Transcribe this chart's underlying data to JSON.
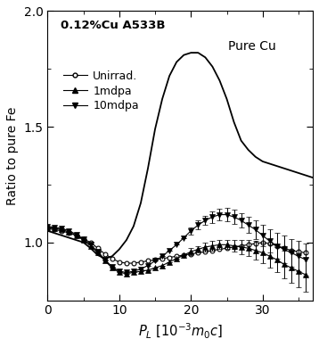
{
  "title_text": "0.12%Cu A533B",
  "pure_cu_label": "Pure Cu",
  "xlabel": "$P_L$ [10$^{-3}$$m_0$$c$]",
  "ylabel": "Ratio to pure Fe",
  "xlim": [
    0,
    37
  ],
  "ylim": [
    0.75,
    2.0
  ],
  "xticks": [
    0,
    10,
    20,
    30
  ],
  "yticks": [
    1.0,
    1.5,
    2.0
  ],
  "pure_cu_x": [
    0.0,
    1.0,
    2.0,
    3.0,
    4.0,
    5.0,
    6.0,
    7.0,
    8.0,
    9.0,
    10.0,
    11.0,
    12.0,
    13.0,
    14.0,
    15.0,
    16.0,
    17.0,
    18.0,
    19.0,
    20.0,
    21.0,
    22.0,
    23.0,
    24.0,
    25.0,
    26.0,
    27.0,
    28.0,
    29.0,
    30.0,
    31.0,
    32.0,
    33.0,
    34.0,
    35.0,
    36.0,
    37.0
  ],
  "pure_cu_y": [
    1.05,
    1.04,
    1.03,
    1.02,
    1.01,
    1.0,
    0.975,
    0.945,
    0.93,
    0.94,
    0.97,
    1.01,
    1.07,
    1.17,
    1.32,
    1.49,
    1.62,
    1.72,
    1.78,
    1.81,
    1.82,
    1.82,
    1.8,
    1.76,
    1.7,
    1.62,
    1.52,
    1.44,
    1.4,
    1.37,
    1.35,
    1.34,
    1.33,
    1.32,
    1.31,
    1.3,
    1.29,
    1.28
  ],
  "unirrad_x": [
    0.0,
    1.0,
    2.0,
    3.0,
    4.0,
    5.0,
    6.0,
    7.0,
    8.0,
    9.0,
    10.0,
    11.0,
    12.0,
    13.0,
    14.0,
    15.0,
    16.0,
    17.0,
    18.0,
    19.0,
    20.0,
    21.0,
    22.0,
    23.0,
    24.0,
    25.0,
    26.0,
    27.0,
    28.0,
    29.0,
    30.0,
    31.0,
    32.0,
    33.0,
    34.0,
    35.0,
    36.0
  ],
  "unirrad_y": [
    1.06,
    1.055,
    1.05,
    1.04,
    1.03,
    1.015,
    1.0,
    0.975,
    0.95,
    0.93,
    0.915,
    0.91,
    0.91,
    0.915,
    0.92,
    0.925,
    0.93,
    0.935,
    0.94,
    0.945,
    0.95,
    0.955,
    0.96,
    0.965,
    0.97,
    0.975,
    0.98,
    0.985,
    0.99,
    0.995,
    1.0,
    0.995,
    0.985,
    0.975,
    0.965,
    0.96,
    0.955
  ],
  "mdpa1_x": [
    0.0,
    1.0,
    2.0,
    3.0,
    4.0,
    5.0,
    6.0,
    7.0,
    8.0,
    9.0,
    10.0,
    11.0,
    12.0,
    13.0,
    14.0,
    15.0,
    16.0,
    17.0,
    18.0,
    19.0,
    20.0,
    21.0,
    22.0,
    23.0,
    24.0,
    25.0,
    26.0,
    27.0,
    28.0,
    29.0,
    30.0,
    31.0,
    32.0,
    33.0,
    34.0,
    35.0,
    36.0
  ],
  "mdpa1_y": [
    1.065,
    1.06,
    1.055,
    1.045,
    1.03,
    1.01,
    0.985,
    0.955,
    0.92,
    0.89,
    0.87,
    0.865,
    0.87,
    0.875,
    0.88,
    0.89,
    0.9,
    0.915,
    0.93,
    0.945,
    0.96,
    0.97,
    0.98,
    0.985,
    0.99,
    0.99,
    0.985,
    0.98,
    0.975,
    0.965,
    0.955,
    0.94,
    0.925,
    0.905,
    0.89,
    0.875,
    0.86
  ],
  "mdpa1_yerr": [
    0.0,
    0.0,
    0.0,
    0.0,
    0.0,
    0.0,
    0.0,
    0.0,
    0.0,
    0.0,
    0.0,
    0.0,
    0.0,
    0.0,
    0.0,
    0.0,
    0.0,
    0.0,
    0.0,
    0.0,
    0.015,
    0.015,
    0.02,
    0.02,
    0.02,
    0.02,
    0.025,
    0.03,
    0.035,
    0.04,
    0.045,
    0.05,
    0.055,
    0.06,
    0.065,
    0.07,
    0.075
  ],
  "mdpa10_x": [
    0.0,
    1.0,
    2.0,
    3.0,
    4.0,
    5.0,
    6.0,
    7.0,
    8.0,
    9.0,
    10.0,
    11.0,
    12.0,
    13.0,
    14.0,
    15.0,
    16.0,
    17.0,
    18.0,
    19.0,
    20.0,
    21.0,
    22.0,
    23.0,
    24.0,
    25.0,
    26.0,
    27.0,
    28.0,
    29.0,
    30.0,
    31.0,
    32.0,
    33.0,
    34.0,
    35.0,
    36.0
  ],
  "mdpa10_y": [
    1.07,
    1.065,
    1.06,
    1.05,
    1.035,
    1.015,
    0.99,
    0.96,
    0.925,
    0.895,
    0.875,
    0.87,
    0.875,
    0.885,
    0.9,
    0.92,
    0.94,
    0.965,
    0.99,
    1.02,
    1.05,
    1.075,
    1.095,
    1.11,
    1.12,
    1.12,
    1.11,
    1.095,
    1.075,
    1.055,
    1.03,
    1.005,
    0.985,
    0.97,
    0.955,
    0.94,
    0.925
  ],
  "mdpa10_yerr": [
    0.0,
    0.0,
    0.0,
    0.0,
    0.0,
    0.0,
    0.0,
    0.0,
    0.0,
    0.0,
    0.0,
    0.0,
    0.0,
    0.0,
    0.0,
    0.0,
    0.0,
    0.0,
    0.0,
    0.0,
    0.015,
    0.02,
    0.02,
    0.025,
    0.025,
    0.03,
    0.03,
    0.03,
    0.035,
    0.04,
    0.045,
    0.05,
    0.055,
    0.06,
    0.06,
    0.065,
    0.07
  ],
  "line_color": "black",
  "background_color": "white"
}
